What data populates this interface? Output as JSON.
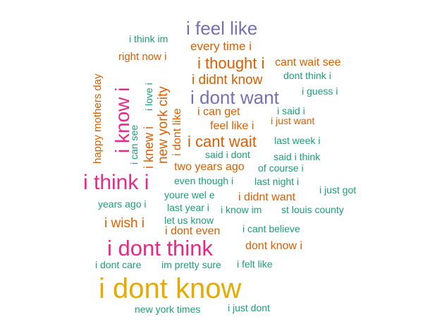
{
  "palette": {
    "teal": "#1b9e77",
    "orange": "#d95f02",
    "purple": "#7570b3",
    "magenta": "#e7298a",
    "gold": "#e6ab02"
  },
  "words": [
    {
      "text": "i dont know",
      "color": "gold",
      "weight": 11
    },
    {
      "text": "i dont think",
      "color": "magenta",
      "weight": 8
    },
    {
      "text": "i think i",
      "color": "magenta",
      "weight": 7
    },
    {
      "text": "i know i",
      "color": "magenta",
      "weight": 7
    },
    {
      "text": "i feel like",
      "color": "purple",
      "weight": 6
    },
    {
      "text": "i dont want",
      "color": "purple",
      "weight": 6
    },
    {
      "text": "i cant wait",
      "color": "orange",
      "weight": 5
    },
    {
      "text": "i thought i",
      "color": "orange",
      "weight": 5
    },
    {
      "text": "i didnt know",
      "color": "orange",
      "weight": 4
    },
    {
      "text": "new york city",
      "color": "orange",
      "weight": 4
    },
    {
      "text": "i wish i",
      "color": "orange",
      "weight": 4
    },
    {
      "text": "i knew i",
      "color": "orange",
      "weight": 4
    },
    {
      "text": "every time i",
      "color": "orange",
      "weight": 3
    },
    {
      "text": "cant wait see",
      "color": "orange",
      "weight": 3
    },
    {
      "text": "i dont like",
      "color": "orange",
      "weight": 3
    },
    {
      "text": "i can get",
      "color": "orange",
      "weight": 3
    },
    {
      "text": "feel like i",
      "color": "orange",
      "weight": 3
    },
    {
      "text": "two years ago",
      "color": "orange",
      "weight": 3
    },
    {
      "text": "i didnt want",
      "color": "orange",
      "weight": 3
    },
    {
      "text": "i dont even",
      "color": "orange",
      "weight": 3
    },
    {
      "text": "dont know i",
      "color": "orange",
      "weight": 3
    },
    {
      "text": "happy mothers day",
      "color": "orange",
      "weight": 2
    },
    {
      "text": "right now i",
      "color": "orange",
      "weight": 2
    },
    {
      "text": "i just want",
      "color": "orange",
      "weight": 2
    },
    {
      "text": "i think im",
      "color": "teal",
      "weight": 1
    },
    {
      "text": "dont think i",
      "color": "teal",
      "weight": 1
    },
    {
      "text": "i guess i",
      "color": "teal",
      "weight": 1
    },
    {
      "text": "i love i",
      "color": "teal",
      "weight": 1
    },
    {
      "text": "i said i",
      "color": "teal",
      "weight": 1
    },
    {
      "text": "i can see",
      "color": "teal",
      "weight": 1
    },
    {
      "text": "last week i",
      "color": "teal",
      "weight": 1
    },
    {
      "text": "said i dont",
      "color": "teal",
      "weight": 1
    },
    {
      "text": "said i think",
      "color": "teal",
      "weight": 1
    },
    {
      "text": "of course i",
      "color": "teal",
      "weight": 1
    },
    {
      "text": "even though i",
      "color": "teal",
      "weight": 1
    },
    {
      "text": "last night i",
      "color": "teal",
      "weight": 1
    },
    {
      "text": "i just got",
      "color": "teal",
      "weight": 1
    },
    {
      "text": "youre wel e",
      "color": "teal",
      "weight": 1
    },
    {
      "text": "years ago i",
      "color": "teal",
      "weight": 1
    },
    {
      "text": "last year i",
      "color": "teal",
      "weight": 1
    },
    {
      "text": "i know im",
      "color": "teal",
      "weight": 1
    },
    {
      "text": "st louis county",
      "color": "teal",
      "weight": 1
    },
    {
      "text": "let us know",
      "color": "teal",
      "weight": 1
    },
    {
      "text": "i cant believe",
      "color": "teal",
      "weight": 1
    },
    {
      "text": "i dont care",
      "color": "teal",
      "weight": 1
    },
    {
      "text": "im pretty sure",
      "color": "teal",
      "weight": 1
    },
    {
      "text": "i felt like",
      "color": "teal",
      "weight": 1
    },
    {
      "text": "new york times",
      "color": "teal",
      "weight": 1
    },
    {
      "text": "i just dont",
      "color": "teal",
      "weight": 1
    }
  ]
}
